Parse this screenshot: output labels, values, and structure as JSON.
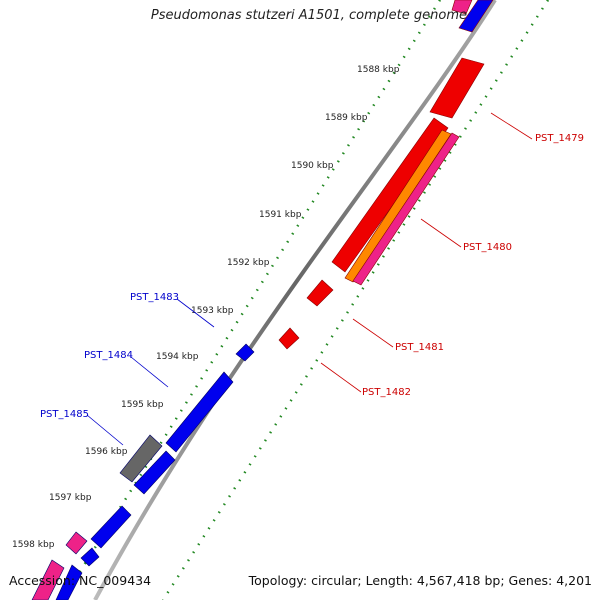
{
  "title": "Pseudomonas stutzeri A1501, complete genome",
  "footer": {
    "accession": "Accession: NC_009434",
    "topology": "Topology: circular; Length: 4,567,418 bp; Genes: 4,201"
  },
  "ruler_labels": [
    "1588 kbp",
    "1589 kbp",
    "1590 kbp",
    "1591 kbp",
    "1592 kbp",
    "1593 kbp",
    "1594 kbp",
    "1595 kbp",
    "1596 kbp",
    "1597 kbp",
    "1598 kbp"
  ],
  "gene_labels": [
    "PST_1479",
    "PST_1480",
    "PST_1481",
    "PST_1482",
    "PST_1483",
    "PST_1484",
    "PST_1485"
  ],
  "colors": {
    "reverse_strand": "#ee0000",
    "forward_strand": "#0000ee",
    "reverse_label": "#cc0000",
    "forward_label": "#0000cc",
    "orange_feature": "#ff8800",
    "pink_feature": "#ee2288",
    "gray_feature": "#666666",
    "backbone": "#888888",
    "ticks": "#228822"
  }
}
